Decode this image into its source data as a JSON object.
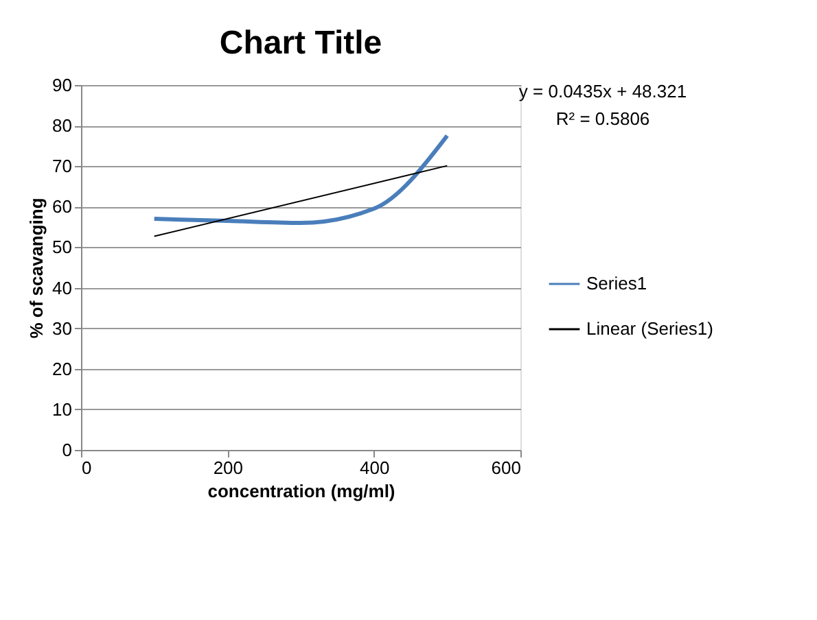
{
  "chart_data": {
    "type": "line",
    "title": "Chart Title",
    "xlabel": "concentration (mg/ml)",
    "ylabel": "% of scavanging",
    "x": [
      100,
      200,
      300,
      400,
      500
    ],
    "series": [
      {
        "name": "Series1",
        "color": "#4a7ebb",
        "values": [
          57,
          56.5,
          56,
          59.5,
          77.5
        ]
      },
      {
        "name": "Linear (Series1)",
        "color": "#000000",
        "type": "line",
        "x": [
          100,
          500
        ],
        "values": [
          52.7,
          70.1
        ]
      }
    ],
    "xlim": [
      0,
      600
    ],
    "xticks": [
      0,
      200,
      400,
      600
    ],
    "ylim": [
      0,
      90
    ],
    "yticks": [
      0,
      10,
      20,
      30,
      40,
      50,
      60,
      70,
      80,
      90
    ],
    "grid": "y",
    "legend": "right",
    "marker": "none",
    "line_style": "solid",
    "annotations": [
      "y = 0.0435x + 48.321",
      "R² = 0.5806"
    ]
  }
}
